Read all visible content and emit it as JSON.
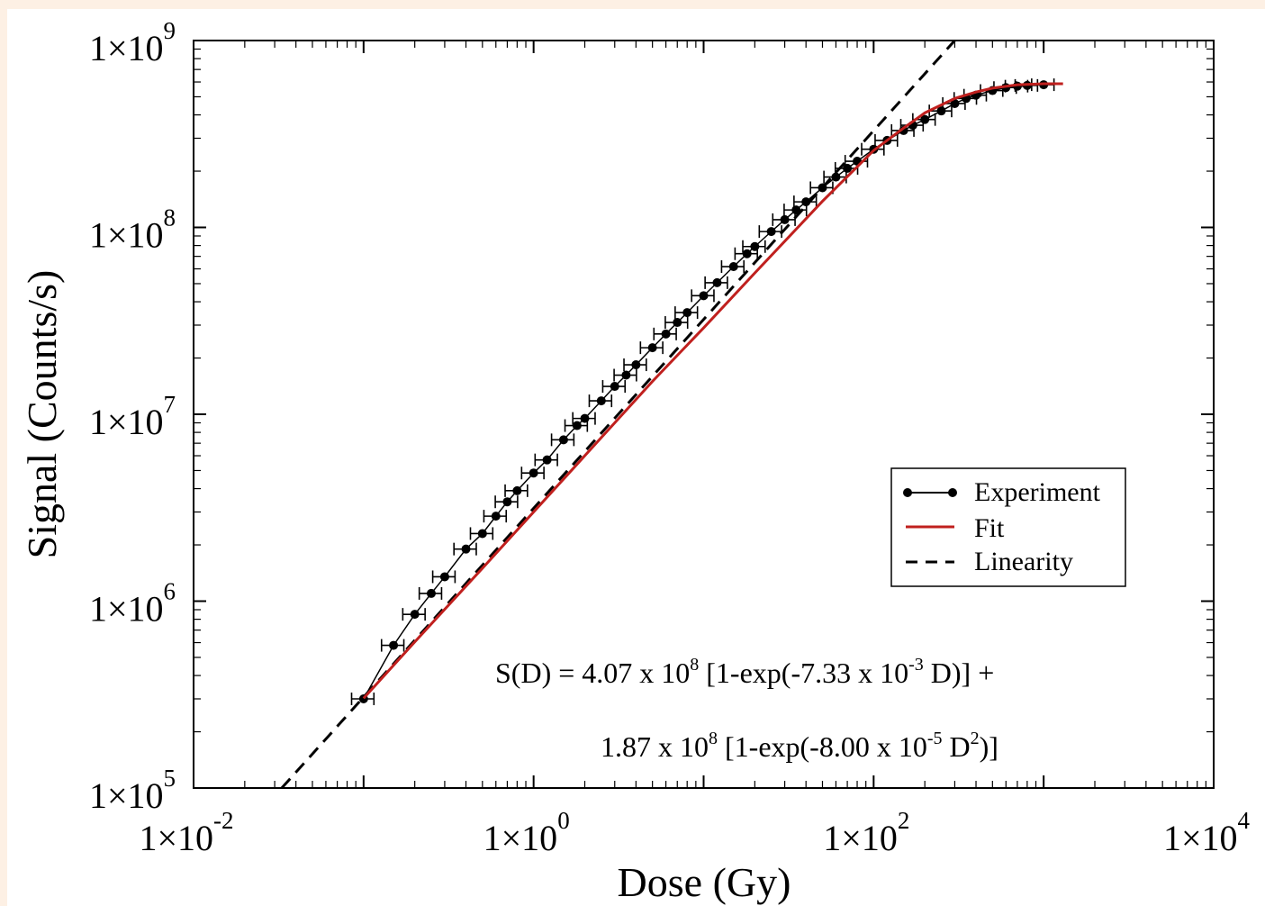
{
  "chart_data": {
    "type": "scatter",
    "title": "",
    "xlabel": "Dose (Gy)",
    "ylabel": "Signal (Counts/s)",
    "x_scale": "log",
    "y_scale": "log",
    "xlim": [
      0.01,
      10000
    ],
    "ylim": [
      100000,
      1000000000
    ],
    "grid": false,
    "legend_position": "center-right",
    "x_ticks": [
      {
        "value": 0.01,
        "mantissa": "1×10",
        "exp": "-2"
      },
      {
        "value": 1,
        "mantissa": "1×10",
        "exp": "0"
      },
      {
        "value": 100,
        "mantissa": "1×10",
        "exp": "2"
      },
      {
        "value": 10000,
        "mantissa": "1×10",
        "exp": "4"
      }
    ],
    "y_ticks": [
      {
        "value": 100000,
        "mantissa": "1×10",
        "exp": "5"
      },
      {
        "value": 1000000,
        "mantissa": "1×10",
        "exp": "6"
      },
      {
        "value": 10000000,
        "mantissa": "1×10",
        "exp": "7"
      },
      {
        "value": 100000000,
        "mantissa": "1×10",
        "exp": "8"
      },
      {
        "value": 1000000000,
        "mantissa": "1×10",
        "exp": "9"
      }
    ],
    "legend": [
      {
        "label": "Experiment",
        "style": "marker-line",
        "color": "#000000"
      },
      {
        "label": "Fit",
        "style": "line",
        "color": "#c0201e"
      },
      {
        "label": "Linearity",
        "style": "dashed",
        "color": "#000000"
      }
    ],
    "series": [
      {
        "name": "Experiment",
        "style": "markers-errorbars",
        "color": "#000000",
        "x": [
          0.1,
          0.15,
          0.2,
          0.25,
          0.3,
          0.4,
          0.5,
          0.6,
          0.7,
          0.8,
          1.0,
          1.2,
          1.5,
          1.8,
          2.0,
          2.5,
          3.0,
          3.5,
          4.0,
          5.0,
          6.0,
          7.0,
          8.0,
          10,
          12,
          15,
          18,
          20,
          25,
          30,
          35,
          40,
          50,
          60,
          70,
          80,
          100,
          120,
          150,
          170,
          200,
          250,
          300,
          350,
          400,
          500,
          600,
          700,
          800,
          1000
        ],
        "y": [
          300000,
          580000,
          850000,
          1100000,
          1350000,
          1900000,
          2300000,
          2850000,
          3400000,
          3900000,
          4850000,
          5700000,
          7300000,
          8700000,
          9500000,
          11800000,
          14100000,
          16200000,
          18400000,
          22700000,
          26900000,
          31000000,
          35000000,
          43100000,
          50600000,
          61700000,
          72300000,
          79000000,
          95000000,
          110000000,
          124000000,
          137000000,
          163000000,
          186000000,
          207000000,
          226000000,
          262000000,
          292000000,
          330000000,
          352000000,
          378000000,
          420000000,
          460000000,
          490000000,
          510000000,
          540000000,
          560000000,
          570000000,
          575000000,
          580000000
        ],
        "errors": {
          "kind": "x-relative",
          "value": 0.15
        }
      },
      {
        "name": "Fit",
        "style": "line",
        "color": "#c0201e",
        "x": [
          0.1,
          0.2,
          0.5,
          1,
          2,
          5,
          10,
          20,
          50,
          100,
          150,
          200,
          300,
          400,
          500,
          700,
          1000,
          1300
        ],
        "y": [
          302000,
          605000,
          1500000,
          3000000,
          6000000,
          15000000,
          29000000,
          57000000,
          138000000,
          258000000,
          340000000,
          410000000,
          490000000,
          530000000,
          556000000,
          580000000,
          587000000,
          587000000
        ]
      },
      {
        "name": "Linearity",
        "style": "dashed",
        "color": "#000000",
        "x": [
          0.033,
          300
        ],
        "y": [
          100000,
          1000000000
        ]
      }
    ],
    "annotations": [
      {
        "id": "fit-formula-line1",
        "parts": [
          {
            "t": "S(D) = 4.07 x 10",
            "sup": "8"
          },
          {
            "t": " [1-exp(-7.33 x 10",
            "sup": "-3"
          },
          {
            "t": " D)] +",
            "sup": ""
          }
        ]
      },
      {
        "id": "fit-formula-line2",
        "parts": [
          {
            "t": "1.87 x 10",
            "sup": "8"
          },
          {
            "t": " [1-exp(-8.00 x 10",
            "sup": "-5"
          },
          {
            "t": " D",
            "sup": "2"
          },
          {
            "t": ")]",
            "sup": ""
          }
        ]
      }
    ]
  }
}
